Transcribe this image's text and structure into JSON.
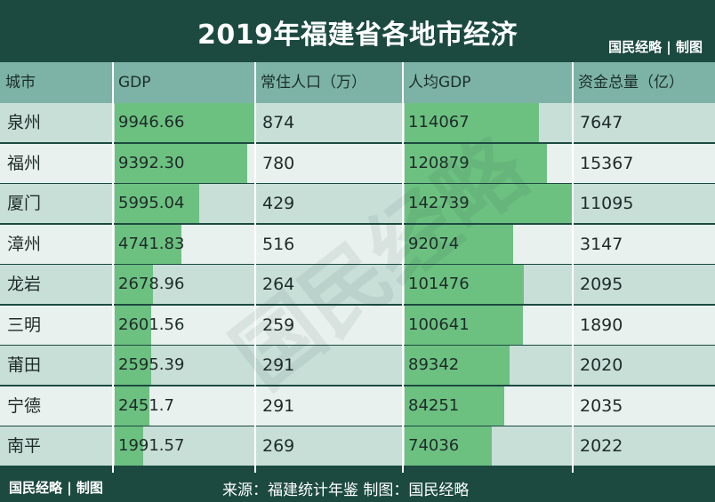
{
  "header": {
    "title": "2019年福建省各地市经济",
    "brand": "国民经略 | 制图"
  },
  "footer": {
    "brand": "国民经略 | 制图",
    "source": "来源：福建统计年鉴  制图：国民经略"
  },
  "watermark": "国民经略",
  "colors": {
    "background": "#1c4a40",
    "header_row": "#7cb3a6",
    "row_odd": "#c8dfd8",
    "row_even": "#e8f1ee",
    "bar": "#6cc181"
  },
  "chart_data": {
    "type": "table",
    "title": "2019年福建省各地市经济",
    "columns": [
      "城市",
      "GDP",
      "常住人口（万）",
      "人均GDP",
      "资金总量（亿）"
    ],
    "bar_columns": [
      "GDP",
      "人均GDP"
    ],
    "rows": [
      {
        "city": "泉州",
        "gdp": "9946.66",
        "population": "874",
        "gdp_per_capita": "114067",
        "funds": "7647"
      },
      {
        "city": "福州",
        "gdp": "9392.30",
        "population": "780",
        "gdp_per_capita": "120879",
        "funds": "15367"
      },
      {
        "city": "厦门",
        "gdp": "5995.04",
        "population": "429",
        "gdp_per_capita": "142739",
        "funds": "11095"
      },
      {
        "city": "漳州",
        "gdp": "4741.83",
        "population": "516",
        "gdp_per_capita": "92074",
        "funds": "3147"
      },
      {
        "city": "龙岩",
        "gdp": "2678.96",
        "population": "264",
        "gdp_per_capita": "101476",
        "funds": "2095"
      },
      {
        "city": "三明",
        "gdp": "2601.56",
        "population": "259",
        "gdp_per_capita": "100641",
        "funds": "1890"
      },
      {
        "city": "莆田",
        "gdp": "2595.39",
        "population": "291",
        "gdp_per_capita": "89342",
        "funds": "2020"
      },
      {
        "city": "宁德",
        "gdp": "2451.7",
        "population": "291",
        "gdp_per_capita": "84251",
        "funds": "2035"
      },
      {
        "city": "南平",
        "gdp": "1991.57",
        "population": "269",
        "gdp_per_capita": "74036",
        "funds": "2022"
      }
    ]
  }
}
